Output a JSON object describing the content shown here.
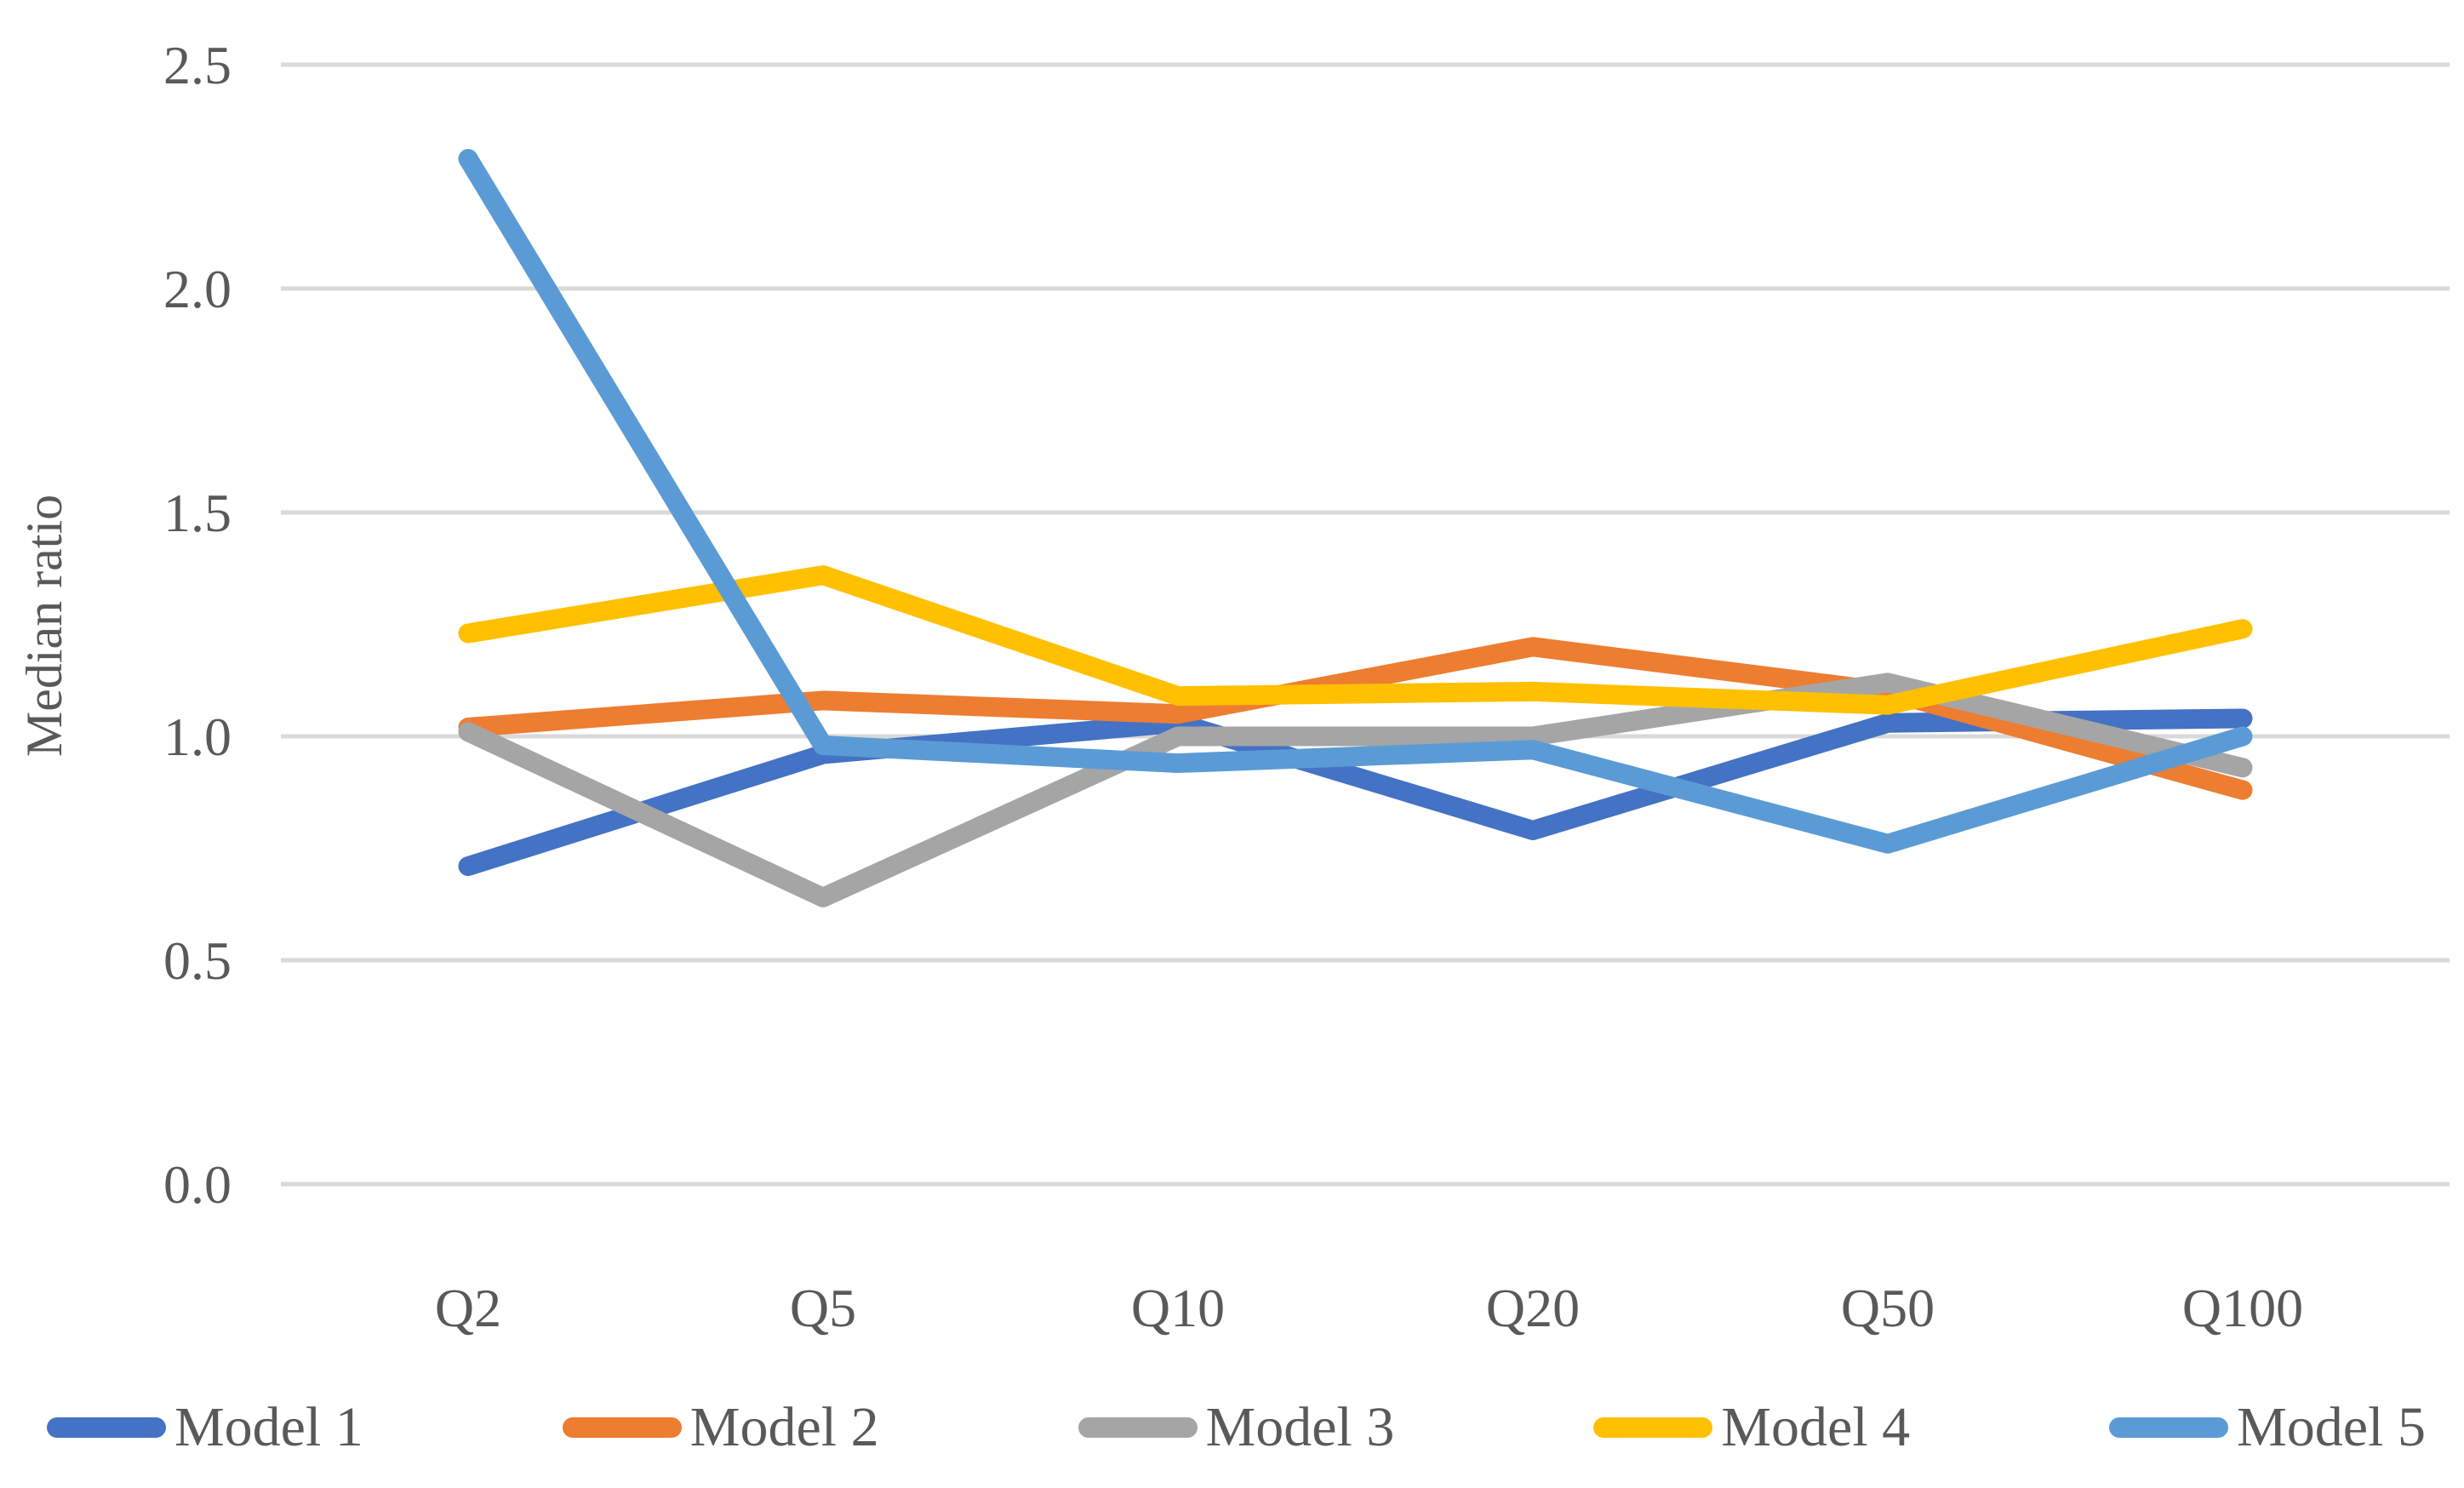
{
  "chart_data": {
    "type": "line",
    "title": "",
    "xlabel": "",
    "ylabel": "Median ratio",
    "categories": [
      "Q2",
      "Q5",
      "Q10",
      "Q20",
      "Q50",
      "Q100"
    ],
    "y_ticks": [
      "0.0",
      "0.5",
      "1.0",
      "1.5",
      "2.0",
      "2.5"
    ],
    "ylim": [
      0.0,
      2.5
    ],
    "grid": "horizontal-only",
    "legend_position": "bottom",
    "series": [
      {
        "name": "Model 1",
        "color": "#4472C4",
        "values": [
          0.71,
          0.96,
          1.03,
          0.79,
          1.03,
          1.04
        ]
      },
      {
        "name": "Model 2",
        "color": "#ED7D31",
        "values": [
          1.02,
          1.08,
          1.05,
          1.2,
          1.1,
          0.88
        ]
      },
      {
        "name": "Model 3",
        "color": "#A5A5A5",
        "values": [
          1.01,
          0.64,
          1.0,
          1.0,
          1.12,
          0.93
        ]
      },
      {
        "name": "Model 4",
        "color": "#FFC000",
        "values": [
          1.23,
          1.36,
          1.09,
          1.1,
          1.07,
          1.24
        ]
      },
      {
        "name": "Model 5",
        "color": "#5B9BD5",
        "values": [
          2.29,
          0.98,
          0.94,
          0.97,
          0.76,
          1.0
        ]
      }
    ]
  },
  "colors": {
    "background": "#FFFFFF",
    "gridline": "#D9D9D9",
    "axis_text": "#595959"
  },
  "layout_values": {
    "line_width": 23,
    "gridline_width": 5
  }
}
